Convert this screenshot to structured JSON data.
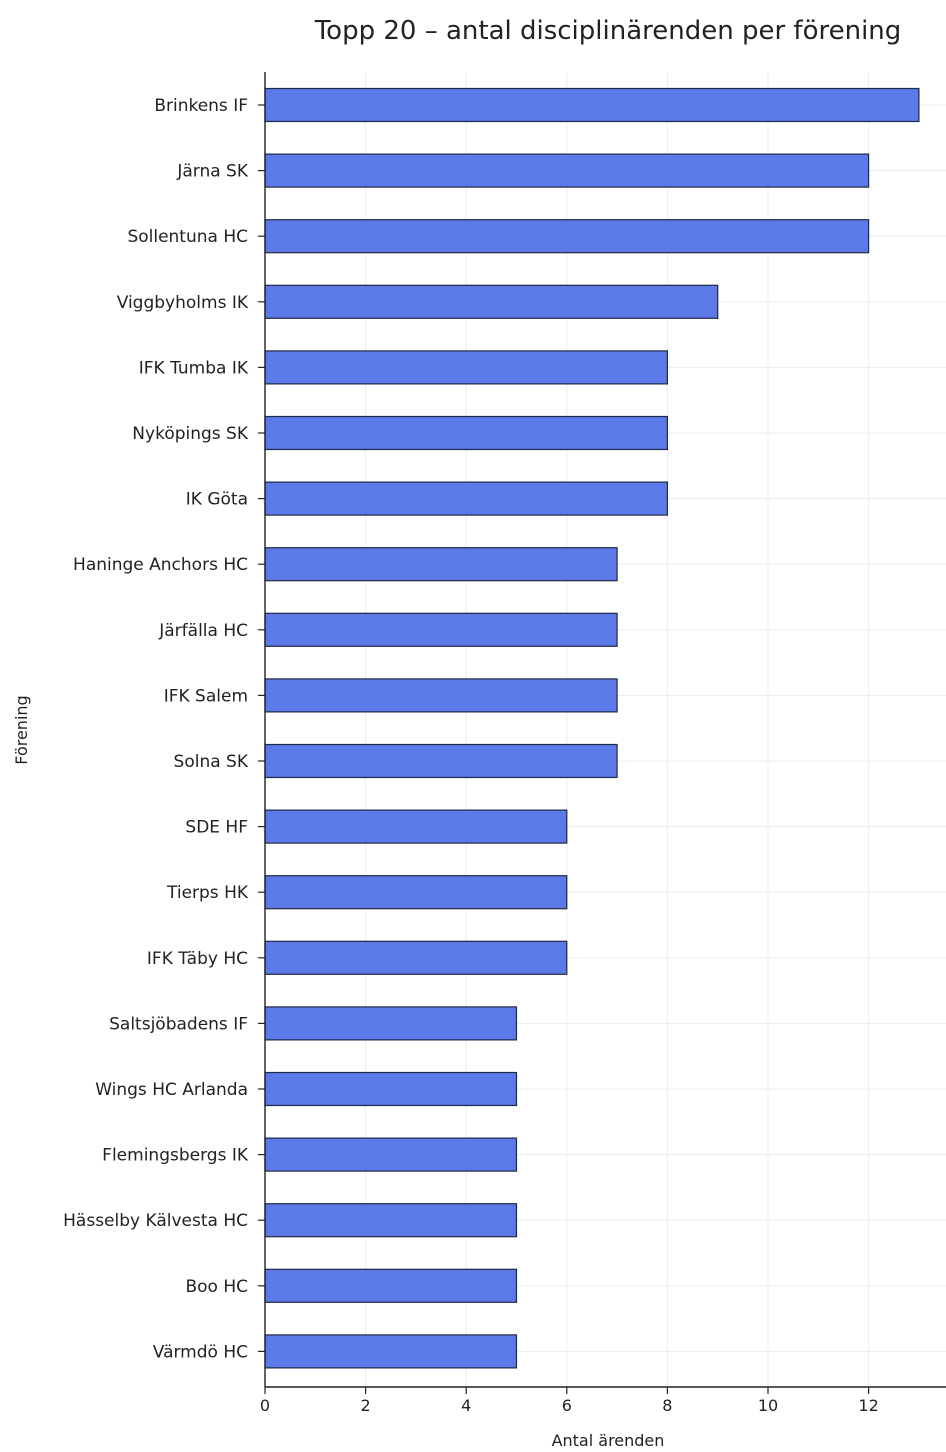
{
  "chart_data": {
    "type": "bar",
    "orientation": "horizontal",
    "title": "Topp 20 – antal disciplinärenden per förening",
    "xlabel": "Antal ärenden",
    "ylabel": "Förening",
    "xlim": [
      0,
      13.5
    ],
    "xticks": [
      0,
      2,
      4,
      6,
      8,
      10,
      12
    ],
    "grid": true,
    "bar_color": "#5b79e8",
    "categories": [
      "Brinkens IF",
      "Järna SK",
      "Sollentuna HC",
      "Viggbyholms IK",
      "IFK Tumba IK",
      "Nyköpings SK",
      "IK Göta",
      "Haninge Anchors HC",
      "Järfälla HC",
      "IFK Salem",
      "Solna SK",
      "SDE HF",
      "Tierps HK",
      "IFK Täby HC",
      "Saltsjöbadens IF",
      "Wings HC Arlanda",
      "Flemingsbergs IK",
      "Hässelby Kälvesta HC",
      "Boo HC",
      "Värmdö HC"
    ],
    "values": [
      13,
      12,
      12,
      9,
      8,
      8,
      8,
      7,
      7,
      7,
      7,
      6,
      6,
      6,
      5,
      5,
      5,
      5,
      5,
      5
    ]
  }
}
